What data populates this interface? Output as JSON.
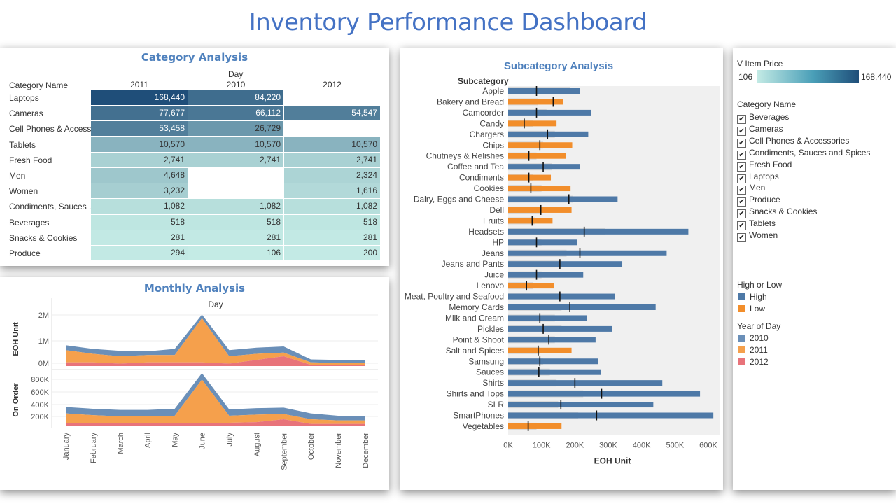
{
  "title": "Inventory Performance Dashboard",
  "category": {
    "title": "Category Analysis",
    "col_group": "Day",
    "row_header": "Category Name",
    "years": [
      "2011",
      "2010",
      "2012"
    ],
    "rows": [
      {
        "name": "Laptops",
        "values": [
          "168,440",
          "84,220",
          ""
        ],
        "levels": [
          168440,
          84220,
          null
        ]
      },
      {
        "name": "Cameras",
        "values": [
          "77,677",
          "66,112",
          "54,547"
        ],
        "levels": [
          77677,
          66112,
          54547
        ]
      },
      {
        "name": "Cell Phones & Access..",
        "values": [
          "53,458",
          "26,729",
          ""
        ],
        "levels": [
          53458,
          26729,
          null
        ]
      },
      {
        "name": "Tablets",
        "values": [
          "10,570",
          "10,570",
          "10,570"
        ],
        "levels": [
          10570,
          10570,
          10570
        ]
      },
      {
        "name": "Fresh Food",
        "values": [
          "2,741",
          "2,741",
          "2,741"
        ],
        "levels": [
          2741,
          2741,
          2741
        ]
      },
      {
        "name": "Men",
        "values": [
          "4,648",
          "",
          "2,324"
        ],
        "levels": [
          4648,
          null,
          2324
        ]
      },
      {
        "name": "Women",
        "values": [
          "3,232",
          "",
          "1,616"
        ],
        "levels": [
          3232,
          null,
          1616
        ]
      },
      {
        "name": "Condiments, Sauces ..",
        "values": [
          "1,082",
          "1,082",
          "1,082"
        ],
        "levels": [
          1082,
          1082,
          1082
        ]
      },
      {
        "name": "Beverages",
        "values": [
          "518",
          "518",
          "518"
        ],
        "levels": [
          518,
          518,
          518
        ]
      },
      {
        "name": "Snacks & Cookies",
        "values": [
          "281",
          "281",
          "281"
        ],
        "levels": [
          281,
          281,
          281
        ]
      },
      {
        "name": "Produce",
        "values": [
          "294",
          "106",
          "200"
        ],
        "levels": [
          294,
          106,
          200
        ]
      }
    ]
  },
  "monthly": {
    "title": "Monthly Analysis",
    "col_label": "Day",
    "months": [
      "January",
      "February",
      "March",
      "April",
      "May",
      "June",
      "July",
      "August",
      "September",
      "October",
      "November",
      "December"
    ],
    "eoh": {
      "ylabel": "EOH Unit",
      "ticks": [
        "2M",
        "1M",
        "0M"
      ],
      "ymax": 2200000,
      "series": [
        {
          "name": "2012",
          "values": [
            150000,
            150000,
            100000,
            150000,
            150000,
            150000,
            100000,
            250000,
            400000,
            50000,
            50000,
            50000
          ]
        },
        {
          "name": "2011",
          "values": [
            500000,
            350000,
            300000,
            300000,
            300000,
            1800000,
            300000,
            250000,
            150000,
            100000,
            80000,
            80000
          ]
        },
        {
          "name": "2010",
          "values": [
            200000,
            200000,
            220000,
            150000,
            250000,
            150000,
            250000,
            250000,
            250000,
            120000,
            120000,
            100000
          ]
        }
      ]
    },
    "onorder": {
      "ylabel": "On Order",
      "ticks": [
        "800K",
        "600K",
        "400K",
        "200K"
      ],
      "ymax": 900000,
      "series": [
        {
          "name": "2012",
          "values": [
            60000,
            60000,
            50000,
            60000,
            60000,
            60000,
            60000,
            70000,
            120000,
            40000,
            40000,
            40000
          ]
        },
        {
          "name": "2011",
          "values": [
            160000,
            130000,
            120000,
            120000,
            120000,
            740000,
            120000,
            130000,
            90000,
            80000,
            60000,
            60000
          ]
        },
        {
          "name": "2010",
          "values": [
            110000,
            110000,
            110000,
            100000,
            120000,
            110000,
            110000,
            110000,
            110000,
            100000,
            80000,
            80000
          ]
        }
      ]
    }
  },
  "subcategory": {
    "title": "Subcategory Analysis",
    "row_header": "Subcategory",
    "xlabel": "EOH Unit",
    "xticks": [
      "0K",
      "100K",
      "200K",
      "300K",
      "400K",
      "500K",
      "600K"
    ],
    "xmax": 600000,
    "items": [
      {
        "name": "Apple",
        "value": 215000,
        "group": "High",
        "ref": 85000,
        "ghost": 185000
      },
      {
        "name": "Bakery and Bread",
        "value": 165000,
        "group": "Low",
        "ref": 135000,
        "ghost": 90000
      },
      {
        "name": "Camcorder",
        "value": 248000,
        "group": "High",
        "ref": 85000,
        "ghost": 115000
      },
      {
        "name": "Candy",
        "value": 145000,
        "group": "Low",
        "ref": 48000,
        "ghost": 75000
      },
      {
        "name": "Chargers",
        "value": 240000,
        "group": "High",
        "ref": 118000,
        "ghost": 140000
      },
      {
        "name": "Chips",
        "value": 192000,
        "group": "Low",
        "ref": 95000,
        "ghost": 105000
      },
      {
        "name": "Chutneys & Relishes",
        "value": 172000,
        "group": "Low",
        "ref": 62000,
        "ghost": 85000
      },
      {
        "name": "Coffee and Tea",
        "value": 215000,
        "group": "High",
        "ref": 105000,
        "ghost": 130000
      },
      {
        "name": "Condiments",
        "value": 128000,
        "group": "Low",
        "ref": 62000,
        "ghost": 75000
      },
      {
        "name": "Cookies",
        "value": 187000,
        "group": "Low",
        "ref": 68000,
        "ghost": 100000
      },
      {
        "name": "Dairy, Eggs and Cheese",
        "value": 328000,
        "group": "High",
        "ref": 182000,
        "ghost": 195000
      },
      {
        "name": "Dell",
        "value": 190000,
        "group": "Low",
        "ref": 98000,
        "ghost": 100000
      },
      {
        "name": "Fruits",
        "value": 133000,
        "group": "Low",
        "ref": 72000,
        "ghost": 80000
      },
      {
        "name": "Headsets",
        "value": 540000,
        "group": "High",
        "ref": 228000,
        "ghost": 290000
      },
      {
        "name": "HP",
        "value": 207000,
        "group": "High",
        "ref": 85000,
        "ghost": 100000
      },
      {
        "name": "Jeans",
        "value": 475000,
        "group": "High",
        "ref": 215000,
        "ghost": 175000
      },
      {
        "name": "Jeans and Pants",
        "value": 342000,
        "group": "High",
        "ref": 155000,
        "ghost": 160000
      },
      {
        "name": "Juice",
        "value": 225000,
        "group": "High",
        "ref": 85000,
        "ghost": 100000
      },
      {
        "name": "Lenovo",
        "value": 138000,
        "group": "Low",
        "ref": 55000,
        "ghost": 75000
      },
      {
        "name": "Meat, Poultry and Seafood",
        "value": 320000,
        "group": "High",
        "ref": 155000,
        "ghost": 160000
      },
      {
        "name": "Memory Cards",
        "value": 442000,
        "group": "High",
        "ref": 185000,
        "ghost": 160000
      },
      {
        "name": "Milk and Cream",
        "value": 237000,
        "group": "High",
        "ref": 95000,
        "ghost": 140000
      },
      {
        "name": "Pickles",
        "value": 312000,
        "group": "High",
        "ref": 105000,
        "ghost": 160000
      },
      {
        "name": "Point & Shoot",
        "value": 262000,
        "group": "High",
        "ref": 122000,
        "ghost": 140000
      },
      {
        "name": "Salt and Spices",
        "value": 190000,
        "group": "Low",
        "ref": 90000,
        "ghost": 95000
      },
      {
        "name": "Samsung",
        "value": 270000,
        "group": "High",
        "ref": 95000,
        "ghost": 105000
      },
      {
        "name": "Sauces",
        "value": 278000,
        "group": "High",
        "ref": 92000,
        "ghost": 125000
      },
      {
        "name": "Shirts",
        "value": 462000,
        "group": "High",
        "ref": 200000,
        "ghost": 145000
      },
      {
        "name": "Shirts and Tops",
        "value": 575000,
        "group": "High",
        "ref": 280000,
        "ghost": 225000
      },
      {
        "name": "SLR",
        "value": 435000,
        "group": "High",
        "ref": 158000,
        "ghost": 150000
      },
      {
        "name": "SmartPhones",
        "value": 615000,
        "group": "High",
        "ref": 265000,
        "ghost": 210000
      },
      {
        "name": "Vegetables",
        "value": 160000,
        "group": "Low",
        "ref": 60000,
        "ghost": 85000
      }
    ]
  },
  "legends": {
    "price": {
      "title": "V Item Price",
      "min": "106",
      "max": "168,440",
      "color_from": "#c4ebe5",
      "color_to": "#1f4e79"
    },
    "category": {
      "title": "Category Name",
      "items": [
        "Beverages",
        "Cameras",
        "Cell Phones & Accessories",
        "Condiments, Sauces and Spices",
        "Fresh Food",
        "Laptops",
        "Men",
        "Produce",
        "Snacks & Cookies",
        "Tablets",
        "Women"
      ]
    },
    "highlow": {
      "title": "High or Low",
      "items": [
        {
          "name": "High",
          "color": "#4e79a7"
        },
        {
          "name": "Low",
          "color": "#f28e2b"
        }
      ]
    },
    "year": {
      "title": "Year of Day",
      "items": [
        {
          "name": "2010",
          "color": "#6a8fb8"
        },
        {
          "name": "2011",
          "color": "#f5a04c"
        },
        {
          "name": "2012",
          "color": "#e8737a"
        }
      ]
    }
  },
  "colors": {
    "high": "#4e79a7",
    "low": "#f28e2b",
    "y2010": "#6a8fb8",
    "y2011": "#f5a04c",
    "y2012": "#e8737a",
    "ghost": "#d8d8d8",
    "band": "#f0f0f0"
  }
}
